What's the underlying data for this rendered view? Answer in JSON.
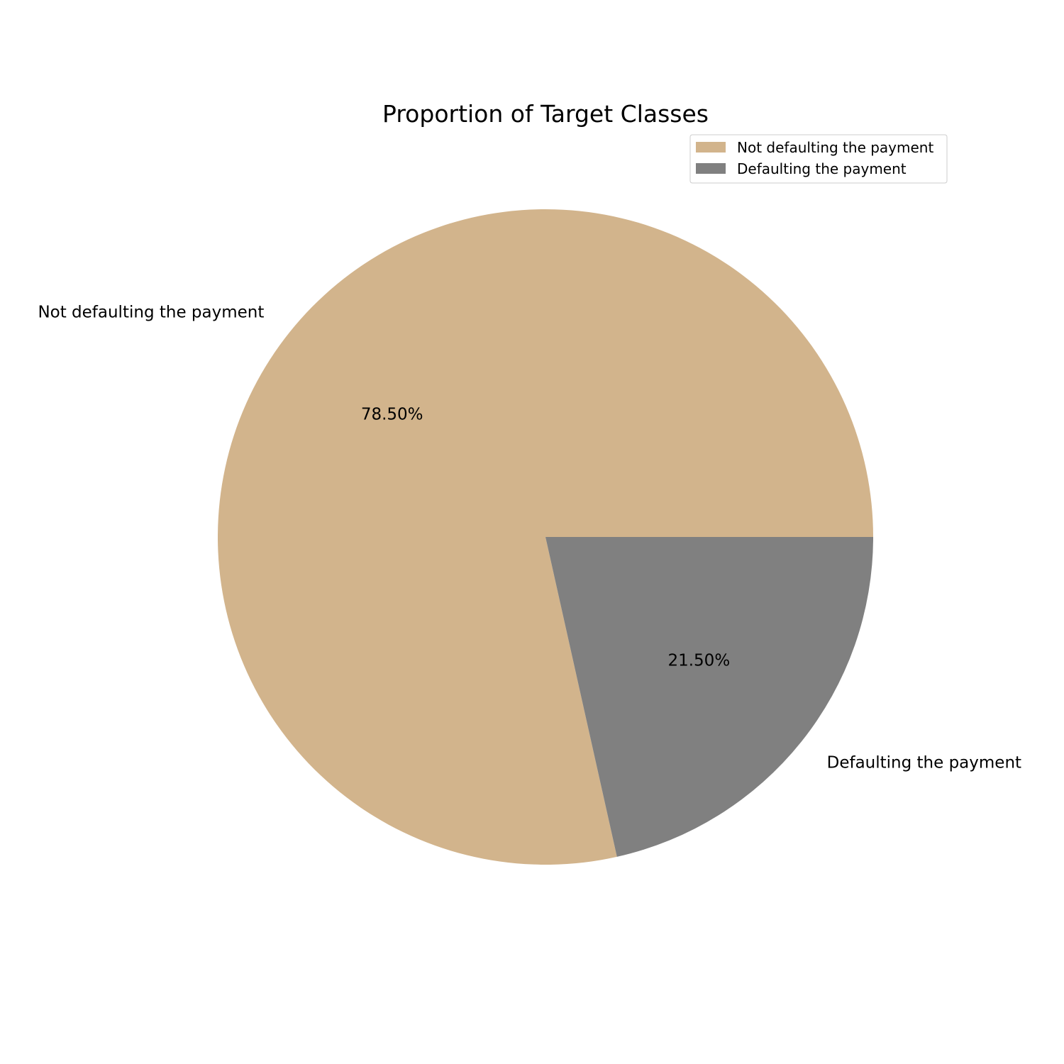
{
  "chart_data": {
    "type": "pie",
    "title": "Proportion of Target Classes",
    "categories": [
      "Not defaulting the payment",
      "Defaulting the payment"
    ],
    "values": [
      78.5,
      21.5
    ],
    "value_labels": [
      "78.50%",
      "21.50%"
    ],
    "colors": [
      "#d2b48c",
      "#808080"
    ],
    "start_angle_deg": 0,
    "direction": "counterclockwise",
    "legend": {
      "placement": "top-right",
      "entries": [
        "Not defaulting the payment",
        "Defaulting the payment"
      ]
    }
  }
}
